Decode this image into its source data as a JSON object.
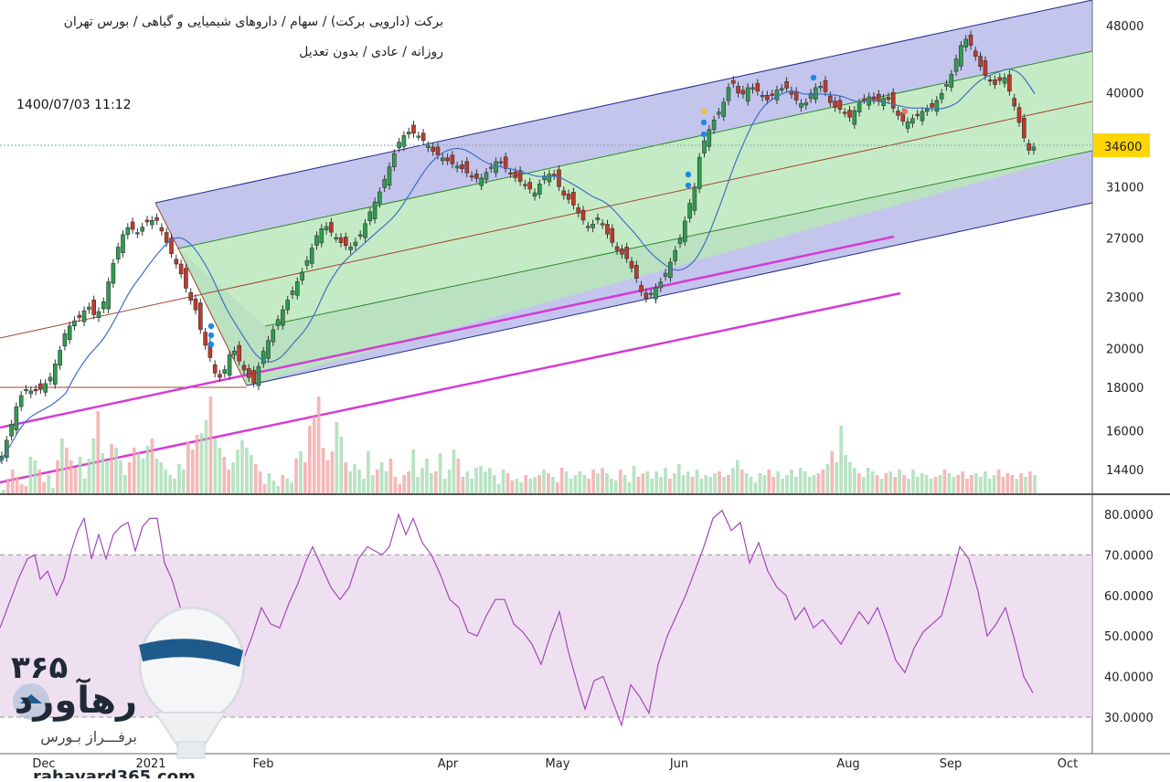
{
  "header": {
    "line1": "برکت (دارویی برکت) / سهام / داروهای شیمیایی و گیاهی / بورس تهران",
    "line2": "روزانه / عادی / بدون تعدیل",
    "datetime": "1400/07/03 11:12"
  },
  "watermark": {
    "number": "۳۶۵",
    "brand": "رهآورد",
    "slogan": "برفـــراز بـورس",
    "url": "rahavard365.com"
  },
  "chart_data": [
    {
      "type": "candlestick",
      "y_scale": "log",
      "y_ticks": [
        14400,
        16000,
        18000,
        20000,
        23000,
        27000,
        31000,
        34600,
        40000,
        48000
      ],
      "last_price": 34600,
      "last_price_color": "#ffd600",
      "x_ticks": [
        "Dec",
        "2021",
        "Feb",
        "Apr",
        "May",
        "Jun",
        "Aug",
        "Sep",
        "Oct"
      ],
      "price_path": [
        [
          0,
          14700
        ],
        [
          5,
          15300
        ],
        [
          12,
          16200
        ],
        [
          20,
          17400
        ],
        [
          28,
          17900
        ],
        [
          36,
          17800
        ],
        [
          45,
          17900
        ],
        [
          55,
          18500
        ],
        [
          65,
          19800
        ],
        [
          72,
          21000
        ],
        [
          80,
          21500
        ],
        [
          88,
          21800
        ],
        [
          96,
          22500
        ],
        [
          104,
          21800
        ],
        [
          112,
          22400
        ],
        [
          122,
          24800
        ],
        [
          130,
          26500
        ],
        [
          138,
          27800
        ],
        [
          146,
          27600
        ],
        [
          152,
          27300
        ],
        [
          158,
          28100
        ],
        [
          165,
          28300
        ],
        [
          172,
          28300
        ],
        [
          180,
          27000
        ],
        [
          190,
          25500
        ],
        [
          198,
          24500
        ],
        [
          206,
          23100
        ],
        [
          214,
          22200
        ],
        [
          222,
          20500
        ],
        [
          230,
          19500
        ],
        [
          238,
          18300
        ],
        [
          246,
          18900
        ],
        [
          254,
          20100
        ],
        [
          262,
          19300
        ],
        [
          270,
          18600
        ],
        [
          278,
          18200
        ],
        [
          286,
          19600
        ],
        [
          294,
          20500
        ],
        [
          302,
          21400
        ],
        [
          312,
          22500
        ],
        [
          322,
          23600
        ],
        [
          330,
          24500
        ],
        [
          338,
          25700
        ],
        [
          346,
          27100
        ],
        [
          355,
          28000
        ],
        [
          365,
          27200
        ],
        [
          375,
          26500
        ],
        [
          385,
          26300
        ],
        [
          395,
          27300
        ],
        [
          405,
          29000
        ],
        [
          415,
          30500
        ],
        [
          425,
          32500
        ],
        [
          435,
          34800
        ],
        [
          445,
          36000
        ],
        [
          455,
          35800
        ],
        [
          465,
          35000
        ],
        [
          475,
          34000
        ],
        [
          485,
          33500
        ],
        [
          495,
          33000
        ],
        [
          505,
          32600
        ],
        [
          515,
          31900
        ],
        [
          525,
          31600
        ],
        [
          535,
          32500
        ],
        [
          545,
          33400
        ],
        [
          555,
          32400
        ],
        [
          565,
          31700
        ],
        [
          575,
          31100
        ],
        [
          585,
          30500
        ],
        [
          595,
          31900
        ],
        [
          605,
          32200
        ],
        [
          615,
          30400
        ],
        [
          625,
          29800
        ],
        [
          635,
          28600
        ],
        [
          645,
          27700
        ],
        [
          655,
          28600
        ],
        [
          665,
          27200
        ],
        [
          675,
          26100
        ],
        [
          685,
          25600
        ],
        [
          695,
          24400
        ],
        [
          705,
          22800
        ],
        [
          715,
          23400
        ],
        [
          725,
          24100
        ],
        [
          735,
          25500
        ],
        [
          745,
          27100
        ],
        [
          752,
          29000
        ],
        [
          760,
          31000
        ],
        [
          766,
          34000
        ],
        [
          772,
          35500
        ],
        [
          780,
          37000
        ],
        [
          790,
          38500
        ],
        [
          800,
          41500
        ],
        [
          810,
          39500
        ],
        [
          820,
          40800
        ],
        [
          830,
          40100
        ],
        [
          840,
          39200
        ],
        [
          850,
          40300
        ],
        [
          860,
          40600
        ],
        [
          870,
          39300
        ],
        [
          880,
          38600
        ],
        [
          890,
          40500
        ],
        [
          900,
          40800
        ],
        [
          910,
          38600
        ],
        [
          920,
          38200
        ],
        [
          930,
          37400
        ],
        [
          940,
          38900
        ],
        [
          950,
          39600
        ],
        [
          960,
          39000
        ],
        [
          970,
          39600
        ],
        [
          980,
          37900
        ],
        [
          990,
          36800
        ],
        [
          1000,
          37400
        ],
        [
          1010,
          38100
        ],
        [
          1020,
          38500
        ],
        [
          1030,
          39900
        ],
        [
          1040,
          41800
        ],
        [
          1048,
          44500
        ],
        [
          1055,
          46500
        ],
        [
          1062,
          45500
        ],
        [
          1070,
          43500
        ],
        [
          1080,
          41500
        ],
        [
          1090,
          40800
        ],
        [
          1098,
          42000
        ],
        [
          1104,
          40300
        ],
        [
          1110,
          38500
        ],
        [
          1118,
          36000
        ],
        [
          1125,
          34200
        ],
        [
          1132,
          34600
        ]
      ],
      "volume": [
        2,
        8,
        13,
        9,
        5,
        4,
        20,
        18,
        13,
        6,
        10,
        3,
        18,
        30,
        25,
        18,
        14,
        20,
        8,
        19,
        30,
        45,
        22,
        18,
        27,
        25,
        18,
        10,
        17,
        25,
        22,
        19,
        26,
        30,
        19,
        17,
        13,
        10,
        8,
        16,
        13,
        28,
        24,
        32,
        33,
        40,
        53,
        30,
        25,
        20,
        13,
        17,
        24,
        29,
        25,
        21,
        16,
        12,
        5,
        11,
        7,
        4,
        10,
        8,
        6,
        19,
        23,
        17,
        37,
        42,
        53,
        25,
        18,
        23,
        39,
        31,
        17,
        12,
        16,
        13,
        8,
        23,
        10,
        13,
        17,
        12,
        19,
        9,
        5,
        10,
        12,
        24,
        9,
        14,
        19,
        11,
        12,
        22,
        8,
        13,
        24,
        19,
        9,
        12,
        8,
        14,
        15,
        12,
        14,
        10,
        5,
        13,
        11,
        7,
        8,
        6,
        10,
        8,
        9,
        10,
        13,
        11,
        9,
        6,
        14,
        12,
        8,
        10,
        12,
        10,
        8,
        13,
        11,
        14,
        11,
        8,
        7,
        13,
        10,
        6,
        15,
        9,
        11,
        12,
        8,
        12,
        9,
        14,
        8,
        11,
        16,
        10,
        12,
        9,
        13,
        8,
        10,
        9,
        11,
        12,
        9,
        10,
        14,
        18,
        13,
        11,
        9,
        6,
        11,
        10,
        13,
        9,
        12,
        8,
        10,
        13,
        9,
        14,
        12,
        9,
        10,
        11,
        13,
        16,
        23,
        17,
        37,
        21,
        17,
        14,
        11,
        9,
        14,
        12,
        10,
        8,
        11,
        12,
        9,
        13,
        10,
        8,
        13,
        9,
        11,
        10,
        8,
        9,
        10,
        13,
        11,
        9,
        10,
        12,
        8,
        10,
        11,
        9,
        12,
        8,
        10,
        13,
        9,
        11,
        10,
        8,
        11,
        9,
        12,
        10
      ]
    },
    {
      "type": "line",
      "y_ticks": [
        30,
        40,
        50,
        60,
        70,
        80
      ],
      "y_tick_labels": [
        "30.0000",
        "40.0000",
        "50.0000",
        "60.0000",
        "70.0000",
        "80.0000"
      ],
      "band": [
        30,
        70
      ],
      "series": [
        {
          "x": [
            0,
            10,
            20,
            30,
            38,
            44,
            52,
            62,
            70,
            78,
            85,
            92,
            100,
            108,
            116,
            124,
            132,
            140,
            148,
            156,
            164,
            172,
            180,
            188,
            196,
            204,
            212,
            220,
            228,
            236,
            246,
            256,
            266,
            276,
            286,
            296,
            306,
            316,
            326,
            334,
            342,
            352,
            362,
            372,
            382,
            392,
            402,
            410,
            418,
            426,
            436,
            444,
            452,
            462,
            472,
            482,
            492,
            502,
            512,
            522,
            532,
            542,
            552,
            562,
            572,
            582,
            592,
            602,
            612,
            622,
            632,
            640,
            650,
            660,
            670,
            680,
            690,
            700,
            710,
            720,
            730,
            740,
            750,
            760,
            770,
            780,
            790,
            800,
            810,
            820,
            830,
            840,
            850,
            860,
            870,
            880,
            890,
            900,
            910,
            920,
            930,
            940,
            950,
            960,
            970,
            980,
            990,
            1000,
            1010,
            1020,
            1030,
            1040,
            1050,
            1060,
            1070,
            1080,
            1090,
            1100,
            1110,
            1120,
            1130
          ],
          "y": [
            52,
            58,
            64,
            69,
            70,
            64,
            66,
            60,
            64,
            71,
            76,
            79,
            69,
            75,
            69,
            75,
            77,
            78,
            71,
            77,
            79,
            79,
            68,
            64,
            58,
            52,
            46,
            41,
            38,
            34,
            33,
            38,
            44,
            50,
            57,
            53,
            52,
            58,
            63,
            68,
            72,
            67,
            62,
            59,
            62,
            69,
            72,
            71,
            70,
            72,
            80,
            75,
            79,
            73,
            70,
            65,
            59,
            57,
            51,
            50,
            55,
            59,
            59,
            53,
            51,
            48,
            43,
            50,
            56,
            46,
            38,
            32,
            39,
            40,
            34,
            28,
            38,
            35,
            31,
            43,
            50,
            55,
            60,
            66,
            72,
            79,
            81,
            76,
            78,
            68,
            73,
            66,
            62,
            60,
            54,
            57,
            52,
            54,
            51,
            48,
            52,
            56,
            53,
            57,
            51,
            44,
            41,
            47,
            51,
            53,
            55,
            63,
            72,
            69,
            61,
            50,
            53,
            57,
            49,
            40,
            36
          ]
        }
      ]
    }
  ]
}
